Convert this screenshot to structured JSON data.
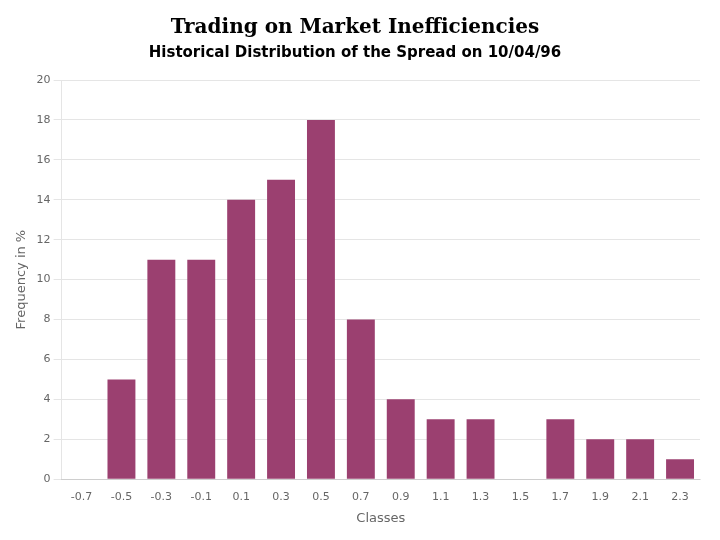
{
  "chart_data": {
    "type": "bar",
    "title": "Trading on Market Inefficiencies",
    "subtitle": "Historical Distribution of the Spread on 10/04/96",
    "categories": [
      "-0.7",
      "-0.5",
      "-0.3",
      "-0.1",
      "0.1",
      "0.3",
      "0.5",
      "0.7",
      "0.9",
      "1.1",
      "1.3",
      "1.5",
      "1.7",
      "1.9",
      "2.1",
      "2.3"
    ],
    "values": [
      0,
      5,
      11,
      11,
      14,
      15,
      18,
      8,
      4,
      3,
      3,
      0,
      3,
      2,
      2,
      1
    ],
    "color": "#9B4070",
    "xlabel": "Classes",
    "ylabel": "Frequency in %",
    "ylim": [
      0,
      20
    ],
    "yticks": [
      0,
      2,
      4,
      6,
      8,
      10,
      12,
      14,
      16,
      18,
      20
    ],
    "grid": "y"
  }
}
